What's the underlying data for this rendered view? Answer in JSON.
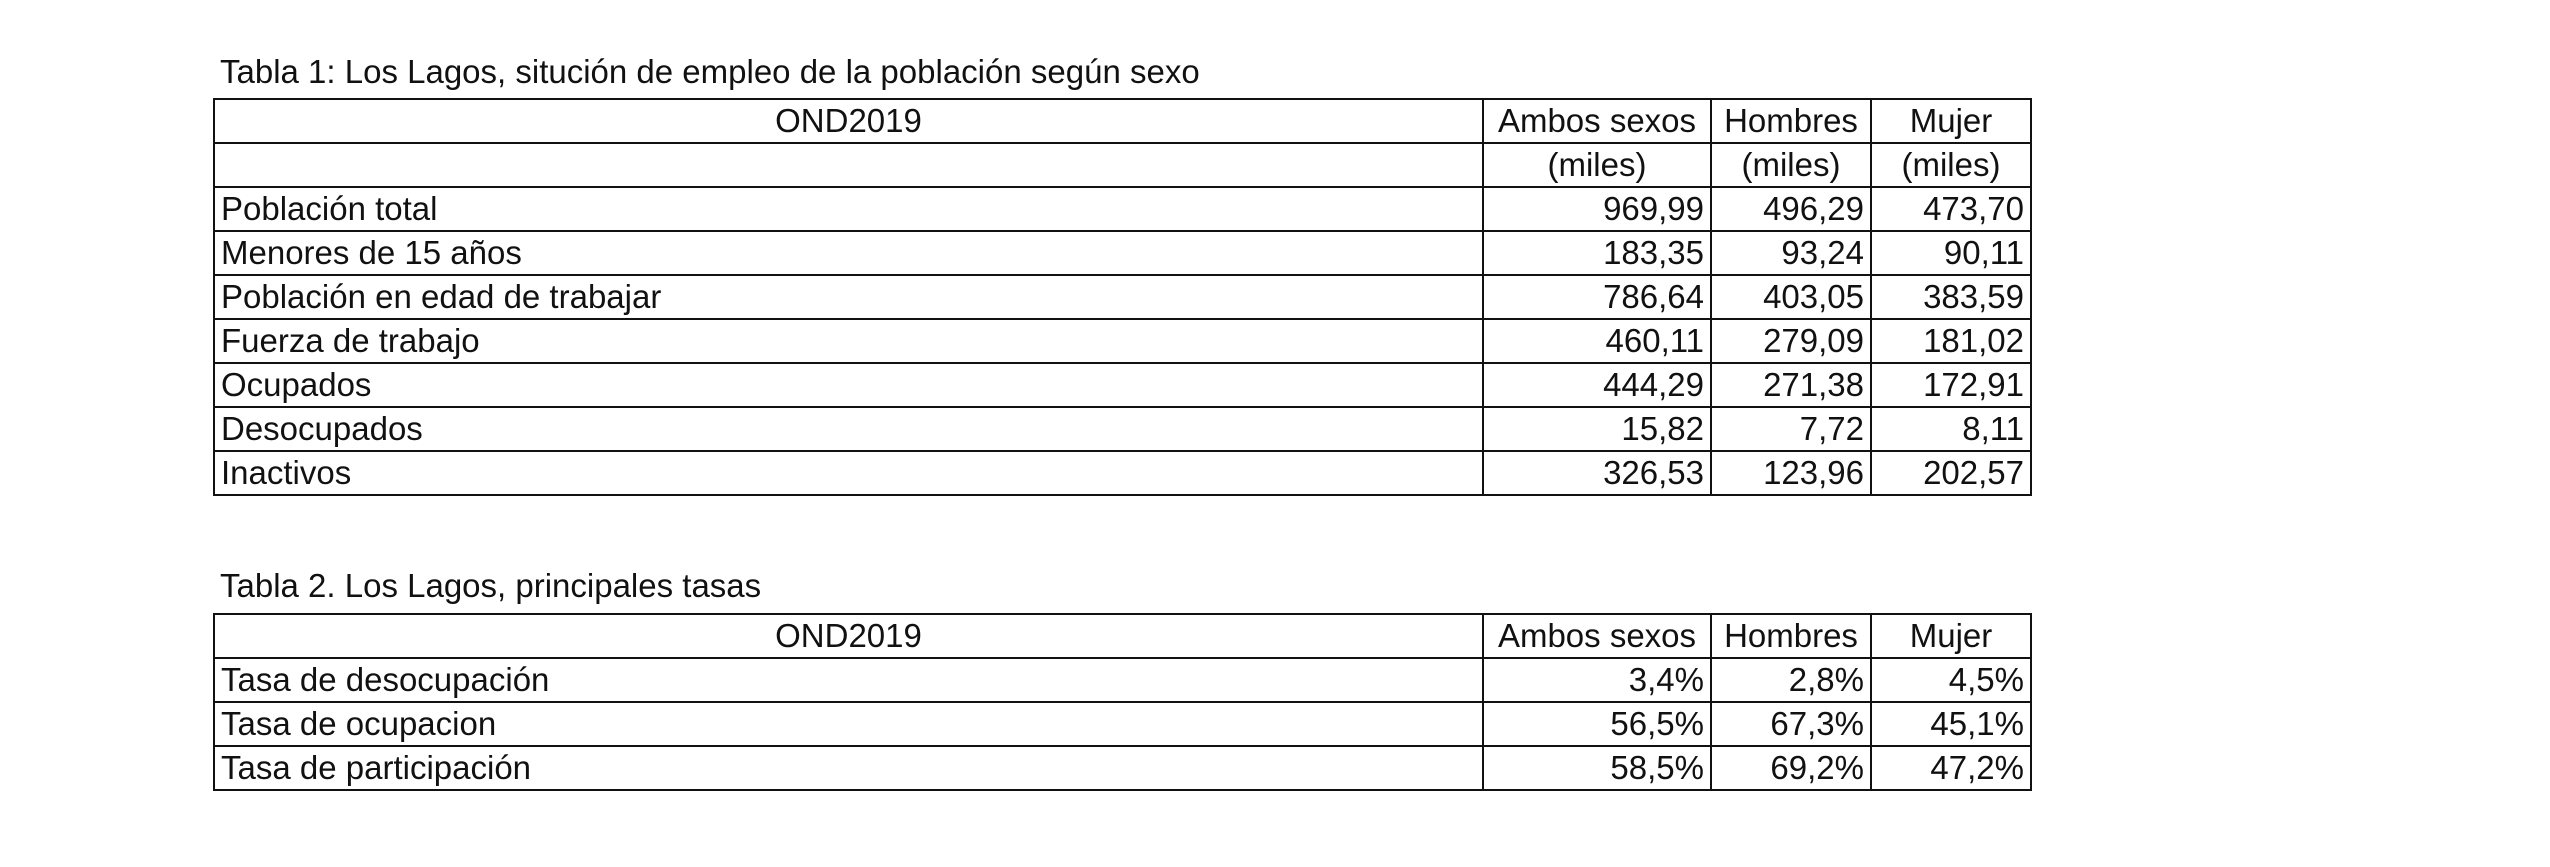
{
  "table1": {
    "caption": "Tabla 1: Los Lagos, situción de empleo de la población según sexo",
    "header": [
      "OND2019",
      "Ambos sexos",
      "Hombres",
      "Mujer"
    ],
    "units": [
      "",
      "(miles)",
      "(miles)",
      "(miles)"
    ],
    "rows": [
      {
        "label": "Población total",
        "indent": 0,
        "values": [
          "969,99",
          "496,29",
          "473,70"
        ]
      },
      {
        "label": "Menores de 15 años",
        "indent": 0,
        "values": [
          "183,35",
          "93,24",
          "90,11"
        ]
      },
      {
        "label": "Población en edad de trabajar",
        "indent": 0,
        "values": [
          "786,64",
          "403,05",
          "383,59"
        ]
      },
      {
        "label": "Fuerza de trabajo",
        "indent": 1,
        "values": [
          "460,11",
          "279,09",
          "181,02"
        ]
      },
      {
        "label": "Ocupados",
        "indent": 2,
        "values": [
          "444,29",
          "271,38",
          "172,91"
        ]
      },
      {
        "label": "Desocupados",
        "indent": 2,
        "values": [
          "15,82",
          "7,72",
          "8,11"
        ]
      },
      {
        "label": "Inactivos",
        "indent": 1,
        "values": [
          "326,53",
          "123,96",
          "202,57"
        ]
      }
    ]
  },
  "table2": {
    "caption": "Tabla 2.  Los Lagos, principales tasas",
    "header": [
      "OND2019",
      "Ambos sexos",
      "Hombres",
      "Mujer"
    ],
    "rows": [
      {
        "label": "Tasa de desocupación",
        "values": [
          "3,4%",
          "2,8%",
          "4,5%"
        ]
      },
      {
        "label": "Tasa de ocupacion",
        "values": [
          "56,5%",
          "67,3%",
          "45,1%"
        ]
      },
      {
        "label": "Tasa de participación",
        "values": [
          "58,5%",
          "69,2%",
          "47,2%"
        ]
      }
    ]
  }
}
